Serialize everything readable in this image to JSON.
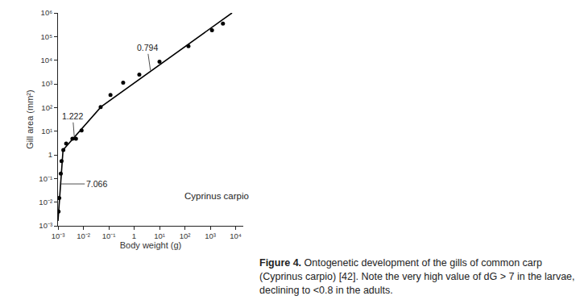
{
  "chart_data": {
    "type": "scatter",
    "log": true,
    "grid": false,
    "x_label": "Body weight (g)",
    "y_label": "Gill area (mm²)",
    "xlim": [
      0.001,
      20000
    ],
    "ylim": [
      0.001,
      1000000
    ],
    "xticks": [
      {
        "value": 0.001,
        "label": "10⁻³"
      },
      {
        "value": 0.01,
        "label": "10⁻²"
      },
      {
        "value": 0.1,
        "label": "10⁻¹"
      },
      1,
      {
        "value": 10,
        "label": "10¹"
      },
      {
        "value": 100,
        "label": "10²"
      },
      {
        "value": 1000,
        "label": "10³"
      },
      {
        "value": 10000,
        "label": "10⁴"
      }
    ],
    "yticks": [
      {
        "value": 0.001,
        "label": "10⁻³"
      },
      {
        "value": 0.01,
        "label": "10⁻²"
      },
      {
        "value": 0.1,
        "label": "10⁻¹"
      },
      1,
      {
        "value": 10,
        "label": "10¹"
      },
      {
        "value": 100,
        "label": "10²"
      },
      {
        "value": 1000,
        "label": "10³"
      },
      {
        "value": 10000,
        "label": "10⁴"
      },
      {
        "value": 100000,
        "label": "10⁵"
      },
      {
        "value": 1000000,
        "label": "10⁶"
      }
    ],
    "series": [
      {
        "type": "scatter",
        "marker": "circle",
        "color": "#000000",
        "x": [
          0.00105,
          0.00112,
          0.00129,
          0.00138,
          0.00162,
          0.0021,
          0.0037,
          0.0051,
          0.0085,
          0.048,
          0.117,
          0.37,
          1.6,
          10,
          138,
          1170,
          3160
        ],
        "values": [
          0.004,
          0.015,
          0.16,
          0.54,
          1.6,
          3.0,
          4.8,
          4.8,
          10.7,
          105,
          340,
          1120,
          2450,
          8700,
          38900,
          186000,
          355000
        ]
      },
      {
        "type": "line",
        "line_style": "solid",
        "color": "#000000",
        "x": [
          0.001,
          0.00158,
          0.05,
          7200
        ],
        "values": [
          0.0016,
          1.6,
          107,
          1000000
        ]
      }
    ],
    "annotations": [
      {
        "text": "1.222",
        "x": 0.0044,
        "y": 5.5
      },
      {
        "text": "0.794",
        "x": 4.4,
        "y": 3700
      },
      {
        "text": "7.066",
        "x": 0.00127,
        "y": 0.059
      },
      {
        "text": "Cyprinus carpio",
        "x": 1800,
        "y": 0.018
      }
    ],
    "caption": {
      "label": "Figure 4.",
      "text": "Ontogenetic development of the gills of common carp (Cyprinus carpio) [42]. Note the very high value of dG > 7 in the larvae, declining to <0.8 in the adults."
    }
  }
}
